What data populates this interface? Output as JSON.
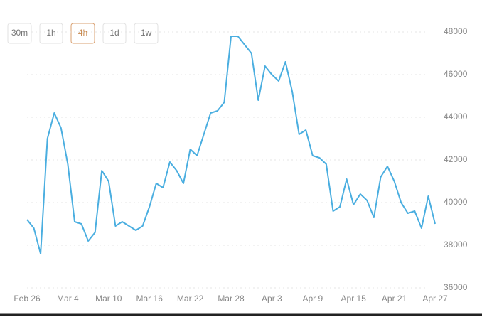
{
  "chart_data": {
    "type": "line",
    "intervals": [
      "30m",
      "1h",
      "4h",
      "1d",
      "1w"
    ],
    "active_interval": "4h",
    "categories": [
      "Feb 26",
      null,
      null,
      null,
      null,
      null,
      "Mar 4",
      null,
      null,
      null,
      null,
      null,
      "Mar 10",
      null,
      null,
      null,
      null,
      null,
      "Mar 16",
      null,
      null,
      null,
      null,
      null,
      "Mar 22",
      null,
      null,
      null,
      null,
      null,
      "Mar 28",
      null,
      null,
      null,
      null,
      null,
      "Apr 3",
      null,
      null,
      null,
      null,
      null,
      "Apr 9",
      null,
      null,
      null,
      null,
      null,
      "Apr 15",
      null,
      null,
      null,
      null,
      null,
      "Apr 21",
      null,
      null,
      null,
      null,
      null,
      "Apr 27"
    ],
    "series": [
      {
        "color": "#4aaee0",
        "values": [
          39200,
          38800,
          37600,
          43000,
          44200,
          43500,
          41800,
          39100,
          39000,
          38200,
          38600,
          41500,
          41000,
          38900,
          39100,
          38900,
          38700,
          38900,
          39800,
          40900,
          40700,
          41900,
          41500,
          40900,
          42500,
          42200,
          43200,
          44200,
          44300,
          44700,
          47800,
          47800,
          47400,
          47000,
          44800,
          46400,
          46000,
          45700,
          46600,
          45200,
          43200,
          43400,
          42200,
          42100,
          41800,
          39600,
          39800,
          41100,
          39900,
          40400,
          40100,
          39300,
          41200,
          41700,
          41000,
          40000,
          39500,
          39600,
          38800,
          40300,
          39000
        ]
      }
    ],
    "ylim": [
      36000,
      48000
    ],
    "yticks": [
      36000,
      38000,
      40000,
      42000,
      44000,
      46000,
      48000
    ],
    "grid": true
  }
}
